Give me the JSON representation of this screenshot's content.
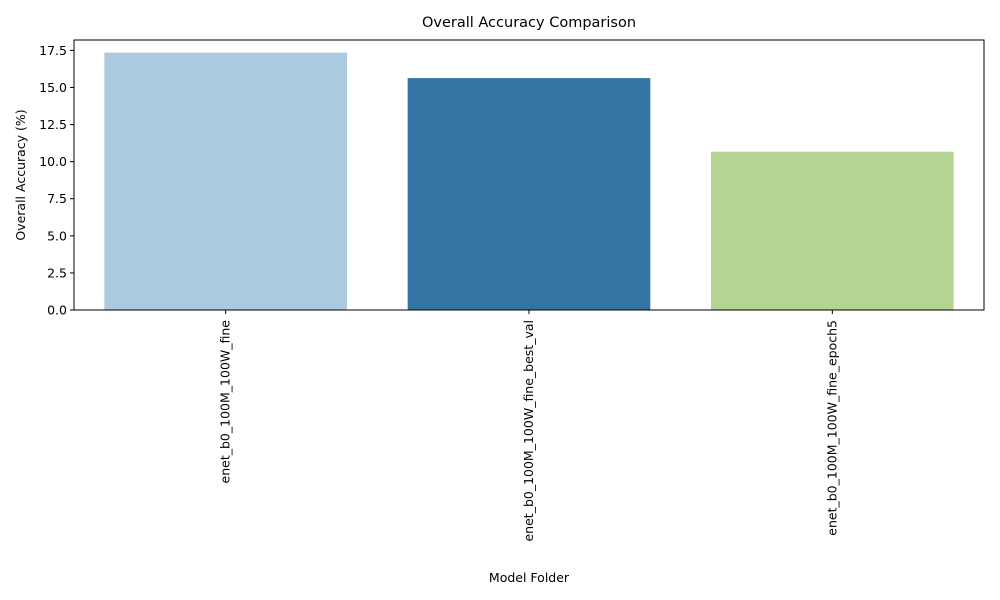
{
  "chart_data": {
    "type": "bar",
    "title": "Overall Accuracy Comparison",
    "xlabel": "Model Folder",
    "ylabel": "Overall Accuracy (%)",
    "categories": [
      "enet_b0_100M_100W_fine",
      "enet_b0_100M_100W_fine_best_val",
      "enet_b0_100M_100W_fine_epoch5"
    ],
    "values": [
      17.35,
      15.63,
      10.67
    ],
    "colors": [
      "#abcae0",
      "#3274a2",
      "#b3d493"
    ],
    "ylim": [
      0,
      18.2
    ],
    "yticks": [
      0.0,
      2.5,
      5.0,
      7.5,
      10.0,
      12.5,
      15.0,
      17.5
    ],
    "ytick_labels": [
      "0.0",
      "2.5",
      "5.0",
      "7.5",
      "10.0",
      "12.5",
      "15.0",
      "17.5"
    ],
    "grid": false,
    "legend": "none"
  }
}
